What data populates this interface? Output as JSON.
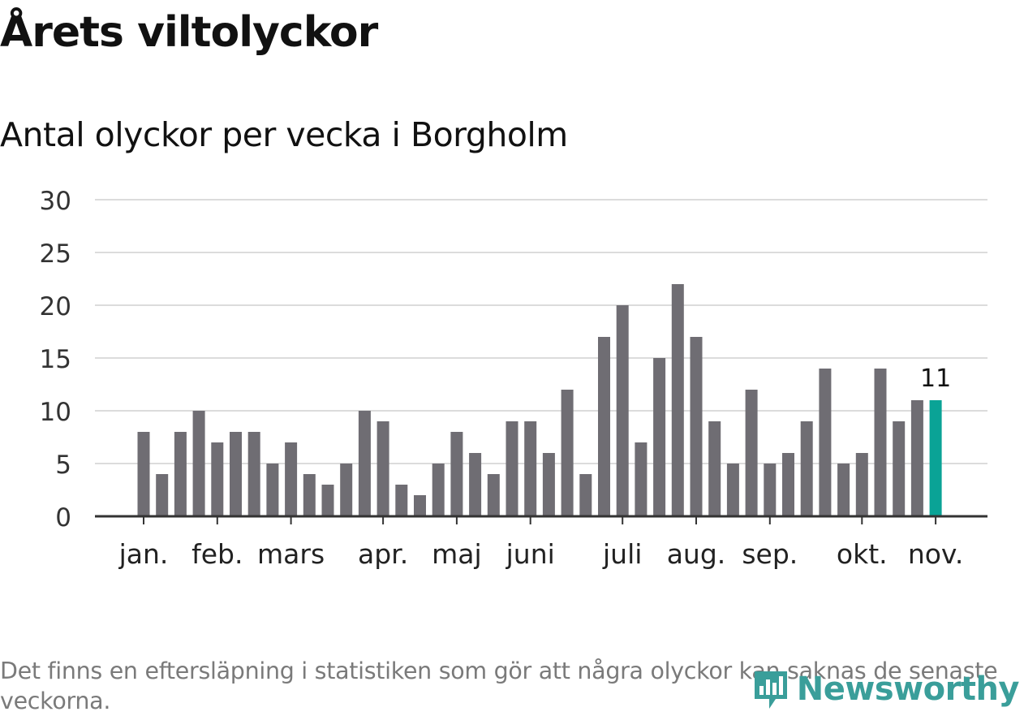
{
  "title": "Årets viltolyckor",
  "subtitle": "Antal olyckor per vecka i Borgholm",
  "note": "Det finns en eftersläpning i statistiken som gör att några olyckor kan saknas de senaste veckorna.",
  "brand": {
    "name": "Newsworthy",
    "icon": "newsworthy-logo-icon",
    "color": "#3a9e9a"
  },
  "chart_data": {
    "type": "bar",
    "title": "Antal olyckor per vecka i Borgholm",
    "xlabel": "",
    "ylabel": "",
    "ylim": [
      0,
      30
    ],
    "yticks": [
      0,
      5,
      10,
      15,
      20,
      25,
      30
    ],
    "grid": true,
    "legend": "none",
    "bar_color": "#6f6d73",
    "highlight_color": "#0aa396",
    "month_labels": [
      {
        "label": "jan.",
        "week": 1
      },
      {
        "label": "feb.",
        "week": 5
      },
      {
        "label": "mars",
        "week": 9
      },
      {
        "label": "apr.",
        "week": 14
      },
      {
        "label": "maj",
        "week": 18
      },
      {
        "label": "juni",
        "week": 22
      },
      {
        "label": "juli",
        "week": 27
      },
      {
        "label": "aug.",
        "week": 31
      },
      {
        "label": "sep.",
        "week": 35
      },
      {
        "label": "okt.",
        "week": 40
      },
      {
        "label": "nov.",
        "week": 44
      }
    ],
    "weeks": [
      1,
      2,
      3,
      4,
      5,
      6,
      7,
      8,
      9,
      10,
      11,
      12,
      13,
      14,
      15,
      16,
      17,
      18,
      19,
      20,
      21,
      22,
      23,
      24,
      25,
      26,
      27,
      28,
      29,
      30,
      31,
      32,
      33,
      34,
      35,
      36,
      37,
      38,
      39,
      40,
      41,
      42,
      43,
      44
    ],
    "values": [
      8,
      4,
      8,
      10,
      7,
      8,
      8,
      5,
      7,
      4,
      3,
      5,
      10,
      9,
      3,
      2,
      5,
      8,
      6,
      4,
      9,
      9,
      6,
      12,
      4,
      17,
      20,
      7,
      15,
      22,
      17,
      9,
      5,
      12,
      5,
      6,
      9,
      14,
      5,
      6,
      14,
      9,
      11,
      11
    ],
    "highlight_index": 43,
    "data_label": "11"
  }
}
